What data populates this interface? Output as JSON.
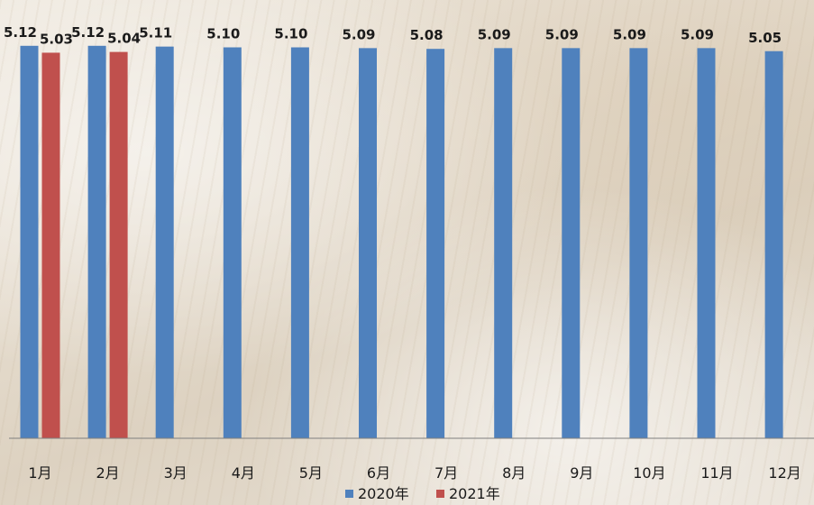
{
  "chart_data": {
    "type": "bar",
    "categories": [
      "1月",
      "2月",
      "3月",
      "4月",
      "5月",
      "6月",
      "7月",
      "8月",
      "9月",
      "10月",
      "11月",
      "12月"
    ],
    "series": [
      {
        "name": "2020年",
        "color": "#4f81bd",
        "values": [
          5.12,
          5.12,
          5.11,
          5.1,
          5.1,
          5.09,
          5.08,
          5.09,
          5.09,
          5.09,
          5.09,
          5.05
        ],
        "labels": [
          "5.12",
          "5.12",
          "5.11",
          "5.10",
          "5.10",
          "5.09",
          "5.08",
          "5.09",
          "5.09",
          "5.09",
          "5.09",
          "5.05"
        ]
      },
      {
        "name": "2021年",
        "color": "#c0504d",
        "values": [
          5.03,
          5.04,
          null,
          null,
          null,
          null,
          null,
          null,
          null,
          null,
          null,
          null
        ],
        "labels": [
          "5.03",
          "5.04",
          "",
          "",
          "",
          "",
          "",
          "",
          "",
          "",
          "",
          ""
        ]
      }
    ],
    "ylim": [
      0,
      5.2
    ],
    "legend_position": "bottom",
    "grid": false
  }
}
